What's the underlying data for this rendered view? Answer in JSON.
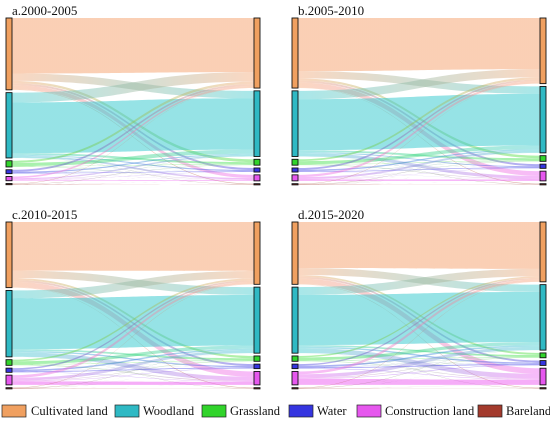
{
  "categories": [
    {
      "key": "cultivated",
      "label": "Cultivated land",
      "color": "#F5A06B",
      "node_fill": "#F0A060",
      "legend_fill": "#F0A060"
    },
    {
      "key": "woodland",
      "label": "Woodland",
      "color": "#2EC7CC",
      "node_fill": "#2FB9C4",
      "legend_fill": "#2FB9C4"
    },
    {
      "key": "grassland",
      "label": "Grassland",
      "color": "#33E02E",
      "node_fill": "#31D42B",
      "legend_fill": "#31D42B"
    },
    {
      "key": "water",
      "label": "Water",
      "color": "#3A38E6",
      "node_fill": "#3535E0",
      "legend_fill": "#3535E0"
    },
    {
      "key": "construction",
      "label": "Construction land",
      "color": "#EC5CF2",
      "node_fill": "#E657EE",
      "legend_fill": "#E657EE"
    },
    {
      "key": "bareland",
      "label": "Bareland",
      "color": "#A33A2C",
      "node_fill": "#A33A2C",
      "legend_fill": "#A33A2C"
    }
  ],
  "panels": [
    {
      "title": "a.2000-2005",
      "left": [
        44.0,
        40.0,
        3.8,
        2.4,
        2.6,
        0.3
      ],
      "right": [
        43.0,
        40.3,
        3.6,
        2.5,
        3.7,
        0.2
      ],
      "flows": [
        [
          34,
          4.5,
          1.5,
          1.2,
          2.5,
          0.3
        ],
        [
          6,
          31,
          1.1,
          0.6,
          1.2,
          0.1
        ],
        [
          1.5,
          2.5,
          0.2,
          0.1,
          0.3,
          0.02
        ],
        [
          1.2,
          0.7,
          0.1,
          0.3,
          0.1,
          0.02
        ],
        [
          1.2,
          0.9,
          0.2,
          0.15,
          0.6,
          0.02
        ],
        [
          0.1,
          0.1,
          0.02,
          0.02,
          0.02,
          0.05
        ]
      ]
    },
    {
      "title": "b.2005-2010",
      "left": [
        43.0,
        40.3,
        3.6,
        2.5,
        3.7,
        0.2
      ],
      "right": [
        40.5,
        41.0,
        3.5,
        2.6,
        6.0,
        0.2
      ],
      "flows": [
        [
          33,
          4.5,
          1.4,
          1.2,
          3.2,
          0.2
        ],
        [
          5.2,
          31.5,
          1.2,
          0.6,
          2.0,
          0.1
        ],
        [
          1.4,
          2.3,
          0.2,
          0.1,
          0.4,
          0.02
        ],
        [
          1.1,
          0.8,
          0.1,
          0.4,
          0.1,
          0.02
        ],
        [
          1.5,
          1.3,
          0.2,
          0.15,
          0.9,
          0.02
        ],
        [
          0.1,
          0.1,
          0.02,
          0.02,
          0.02,
          0.05
        ]
      ]
    },
    {
      "title": "c.2010-2015",
      "left": [
        40.5,
        41.0,
        3.5,
        2.6,
        6.0,
        0.2
      ],
      "right": [
        38.5,
        40.8,
        3.3,
        2.8,
        8.3,
        0.2
      ],
      "flows": [
        [
          31.5,
          4.8,
          1.3,
          1.2,
          3.5,
          0.2
        ],
        [
          4.8,
          30.8,
          1.1,
          0.8,
          2.7,
          0.1
        ],
        [
          1.2,
          2.1,
          0.2,
          0.1,
          0.5,
          0.02
        ],
        [
          1.0,
          0.9,
          0.1,
          0.5,
          0.2,
          0.02
        ],
        [
          1.5,
          1.6,
          0.3,
          0.2,
          2.0,
          0.02
        ],
        [
          0.1,
          0.1,
          0.02,
          0.02,
          0.02,
          0.05
        ]
      ]
    },
    {
      "title": "d.2015-2020",
      "left": [
        38.5,
        40.8,
        3.3,
        2.8,
        8.3,
        0.2
      ],
      "right": [
        37.0,
        40.5,
        3.0,
        3.0,
        10.3,
        0.2
      ],
      "flows": [
        [
          30,
          4.5,
          1.2,
          1.2,
          3.5,
          0.2
        ],
        [
          4.8,
          30.8,
          1.0,
          0.9,
          3.0,
          0.1
        ],
        [
          1.0,
          2.0,
          0.2,
          0.1,
          0.4,
          0.02
        ],
        [
          0.9,
          1.0,
          0.1,
          0.5,
          0.3,
          0.02
        ],
        [
          1.5,
          1.9,
          0.3,
          0.3,
          3.2,
          0.02
        ],
        [
          0.1,
          0.1,
          0.02,
          0.02,
          0.02,
          0.05
        ]
      ]
    }
  ]
}
